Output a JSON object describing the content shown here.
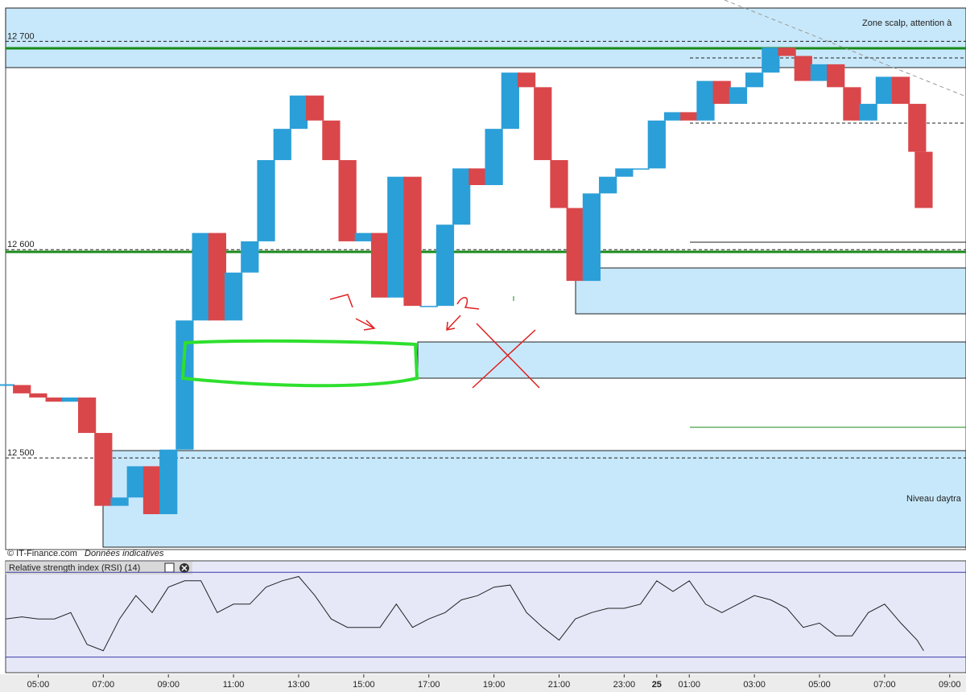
{
  "chart_data": [
    {
      "type": "candlestick",
      "annotations": [
        "Zone scalp, attention à",
        "Niveau daytra"
      ],
      "source": "© IT-Finance.com",
      "source_note": "Données indicatives",
      "up_color": "#2b9fd8",
      "down_color": "#d9474b",
      "x": [
        4.0,
        4.5,
        5.0,
        5.5,
        6.0,
        6.5,
        7.0,
        7.5,
        8.0,
        8.5,
        9.0,
        9.5,
        10.0,
        10.5,
        11.0,
        11.5,
        12.0,
        12.5,
        13.0,
        13.5,
        14.0,
        14.5,
        15.0,
        15.5,
        16.0,
        16.5,
        17.0,
        17.5,
        18.0,
        18.5,
        19.0,
        19.5,
        20.0,
        20.5,
        21.0,
        21.5,
        22.0,
        22.5,
        23.0,
        23.5,
        24.0,
        24.5,
        25.0,
        25.5,
        26.0,
        26.5,
        27.0,
        27.5,
        28.0,
        28.5,
        29.0,
        29.5,
        30.0,
        30.5,
        31.0,
        31.5,
        32.0,
        32.2
      ],
      "values": [
        12535,
        12531,
        12529,
        12527,
        12529,
        12512,
        12477,
        12481,
        12496,
        12473,
        12504,
        12566,
        12608,
        12566,
        12589,
        12604,
        12643,
        12658,
        12674,
        12662,
        12643,
        12604,
        12608,
        12577,
        12635,
        12573,
        12573,
        12612,
        12639,
        12631,
        12658,
        12685,
        12678,
        12643,
        12620,
        12585,
        12627,
        12635,
        12639,
        12639,
        12662,
        12666,
        12662,
        12681,
        12670,
        12678,
        12685,
        12697,
        12693,
        12681,
        12689,
        12678,
        12662,
        12670,
        12683,
        12670,
        12647,
        12620
      ],
      "ylim": [
        12456,
        12716
      ],
      "yticks": [
        {
          "value": 12700,
          "label": "12 700"
        },
        {
          "value": 12600,
          "label": "12 600"
        },
        {
          "value": 12500,
          "label": "12 500"
        }
      ],
      "xlim": [
        4,
        33.5
      ],
      "xticks": [
        {
          "value": 5,
          "label": "05:00"
        },
        {
          "value": 7,
          "label": "07:00"
        },
        {
          "value": 9,
          "label": "09:00"
        },
        {
          "value": 11,
          "label": "11:00"
        },
        {
          "value": 13,
          "label": "13:00"
        },
        {
          "value": 15,
          "label": "15:00"
        },
        {
          "value": 17,
          "label": "17:00"
        },
        {
          "value": 19,
          "label": "19:00"
        },
        {
          "value": 21,
          "label": "21:00"
        },
        {
          "value": 23,
          "label": "23:00"
        },
        {
          "value": 24,
          "label": "25"
        },
        {
          "value": 25,
          "label": "01:00"
        },
        {
          "value": 27,
          "label": "03:00"
        },
        {
          "value": 29,
          "label": "05:00"
        },
        {
          "value": 31,
          "label": "07:00"
        },
        {
          "value": 33,
          "label": "09:00"
        }
      ],
      "grid": true
    },
    {
      "type": "line",
      "title": "Relative strength index (RSI) (14)",
      "color": "#222222",
      "values": [
        48,
        49,
        48,
        48,
        51,
        36,
        33,
        48,
        59,
        51,
        63,
        66,
        66,
        51,
        55,
        55,
        63,
        66,
        68,
        59,
        48,
        44,
        44,
        44,
        55,
        44,
        48,
        51,
        57,
        59,
        63,
        64,
        51,
        44,
        38,
        48,
        51,
        53,
        53,
        55,
        66,
        61,
        66,
        55,
        51,
        55,
        59,
        57,
        53,
        44,
        46,
        40,
        40,
        51,
        55,
        46,
        38,
        33
      ],
      "ylim": [
        23,
        72
      ],
      "levels": [
        30,
        70
      ]
    }
  ]
}
